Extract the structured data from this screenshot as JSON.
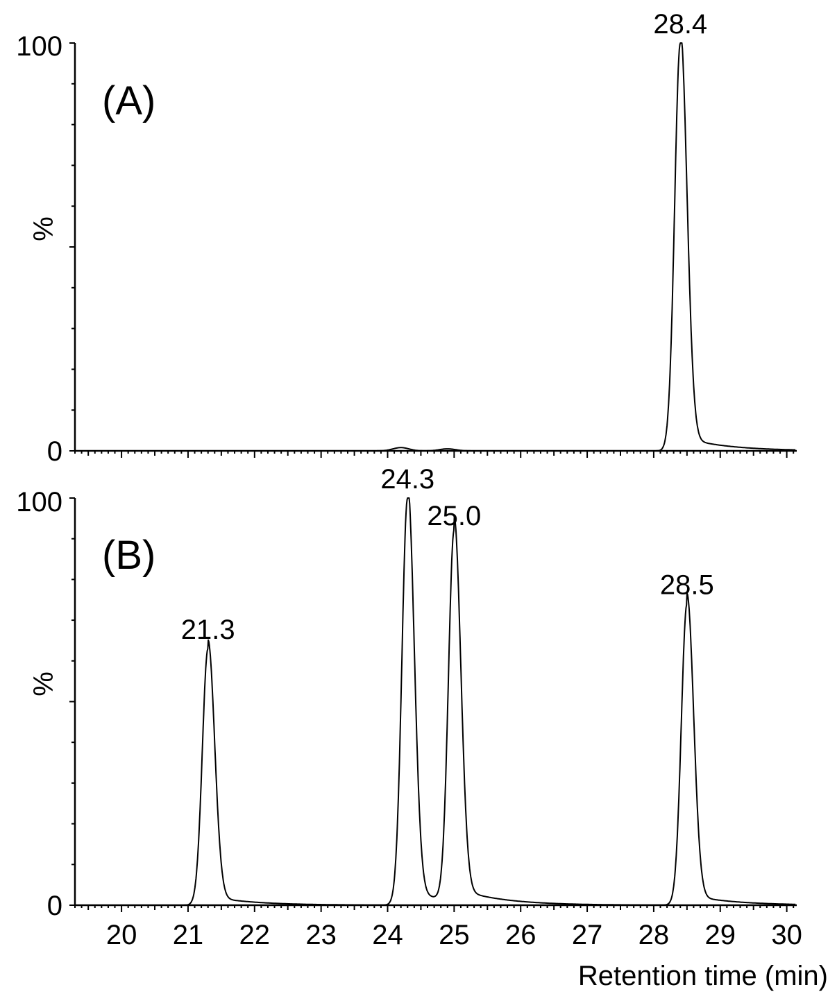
{
  "chart_data": [
    {
      "type": "line",
      "panel_label": "(A)",
      "ylabel": "%",
      "xlabel": "",
      "xlim": [
        19.3,
        30.15
      ],
      "ylim": [
        0,
        100
      ],
      "y_tick_labels": [
        "0",
        "100"
      ],
      "annotations": [
        "28.4"
      ],
      "peaks": [
        {
          "rt": 28.4,
          "height": 100,
          "label": "28.4"
        }
      ],
      "minor_bumps": [
        {
          "rt": 24.2,
          "height": 0.8
        },
        {
          "rt": 24.9,
          "height": 0.5
        }
      ]
    },
    {
      "type": "line",
      "panel_label": "(B)",
      "ylabel": "%",
      "xlabel": "Retention time (min)",
      "xlim": [
        19.3,
        30.15
      ],
      "ylim": [
        0,
        100
      ],
      "y_tick_labels": [
        "0",
        "100"
      ],
      "x_tick_labels": [
        "20",
        "21",
        "22",
        "23",
        "24",
        "25",
        "26",
        "27",
        "28",
        "29",
        "30"
      ],
      "annotations": [
        "21.3",
        "24.3",
        "25.0",
        "28.5"
      ],
      "peaks": [
        {
          "rt": 21.3,
          "height": 63,
          "label": "21.3"
        },
        {
          "rt": 24.3,
          "height": 100,
          "label": "24.3"
        },
        {
          "rt": 25.0,
          "height": 91,
          "label": "25.0"
        },
        {
          "rt": 28.5,
          "height": 74,
          "label": "28.5"
        }
      ]
    }
  ]
}
